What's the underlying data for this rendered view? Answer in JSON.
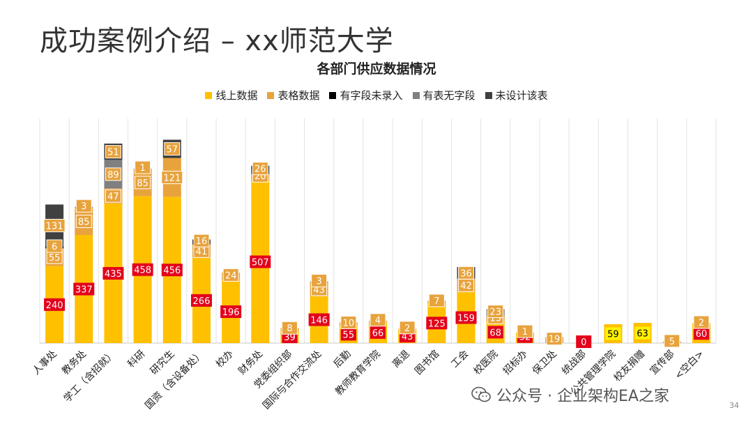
{
  "slide": {
    "title": "成功案例介绍 – xx师范大学",
    "page_number": "34",
    "watermark": "公众号 · 企业架构EA之家"
  },
  "chart_data": {
    "type": "bar",
    "stacked": true,
    "title": "各部门供应数据情况",
    "categories": [
      "人事处",
      "教务处",
      "学工（含招就）",
      "科研",
      "研究生",
      "国资（含设备处）",
      "校办",
      "财务处",
      "党委组织部",
      "国际与合作交流处",
      "后勤",
      "教师教育学院",
      "离退",
      "图书馆",
      "工会",
      "校医院",
      "招标办",
      "保卫处",
      "统战部",
      "公共管理学院",
      "校友捐赠",
      "宣传部",
      "<空白>"
    ],
    "series": [
      {
        "name": "线上数据",
        "color": "#FFC000",
        "values": [
          240,
          337,
          435,
          458,
          456,
          266,
          196,
          507,
          39,
          146,
          55,
          66,
          43,
          125,
          159,
          68,
          32,
          0,
          0,
          59,
          63,
          0,
          60
        ]
      },
      {
        "name": "表格数据",
        "color": "#E8A33D",
        "values": [
          55,
          85,
          47,
          85,
          121,
          41,
          24,
          20,
          8,
          43,
          10,
          4,
          2,
          7,
          42,
          15,
          1,
          19,
          0,
          0,
          0,
          5,
          2
        ]
      },
      {
        "name": "有字段未录入",
        "color": "#000000",
        "values": [
          6,
          0,
          0,
          0,
          0,
          0,
          0,
          0,
          0,
          0,
          0,
          0,
          0,
          0,
          0,
          0,
          0,
          0,
          0,
          0,
          0,
          0,
          0
        ]
      },
      {
        "name": "有表无字段",
        "color": "#808080",
        "values": [
          0,
          3,
          89,
          1,
          0,
          0,
          0,
          0,
          0,
          3,
          0,
          0,
          0,
          0,
          0,
          23,
          0,
          0,
          0,
          0,
          0,
          0,
          0
        ]
      },
      {
        "name": "未设计该表",
        "color": "#404040",
        "values": [
          131,
          0,
          51,
          0,
          57,
          16,
          0,
          26,
          0,
          0,
          0,
          0,
          0,
          0,
          36,
          0,
          0,
          0,
          0,
          0,
          0,
          0,
          0
        ]
      }
    ],
    "ylim": [
      0,
      700
    ],
    "grid": "vertical",
    "legend_position": "top"
  }
}
